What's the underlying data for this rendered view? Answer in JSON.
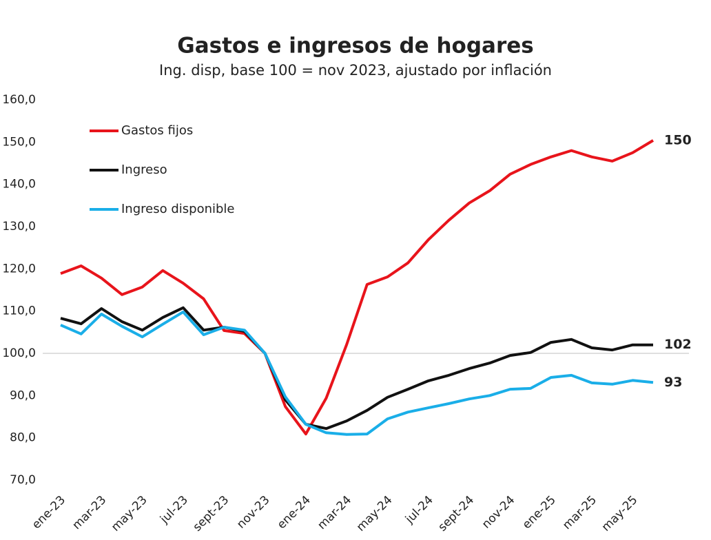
{
  "chart_data": {
    "type": "line",
    "title": "Gastos e ingresos de hogares",
    "subtitle": "Ing. disp, base 100 = nov 2023, ajustado por inflación",
    "categories": [
      "ene-23",
      null,
      "mar-23",
      null,
      "may-23",
      null,
      "jul-23",
      null,
      "sept-23",
      null,
      "nov-23",
      null,
      "ene-24",
      null,
      "mar-24",
      null,
      "may-24",
      null,
      "jul-24",
      null,
      "sept-24",
      null,
      "nov-24",
      null,
      "ene-25",
      null,
      "mar-25",
      null,
      "may-25",
      null
    ],
    "series": [
      {
        "name": "Gastos fijos",
        "color": "#e8141b",
        "end_label": "150",
        "values": [
          118.9,
          120.7,
          117.8,
          113.9,
          115.7,
          119.6,
          116.6,
          112.9,
          105.4,
          104.7,
          100,
          87.4,
          80.9,
          89.4,
          102.1,
          116.3,
          118.1,
          121.4,
          126.9,
          131.5,
          135.6,
          138.5,
          142.4,
          144.7,
          146.5,
          148,
          146.5,
          145.5,
          147.5,
          150.4
        ]
      },
      {
        "name": "Ingreso",
        "color": "#111111",
        "end_label": "102",
        "values": [
          108.3,
          107,
          110.6,
          107.5,
          105.5,
          108.5,
          110.8,
          105.5,
          106.2,
          105.2,
          100,
          89,
          83.2,
          82.2,
          84,
          86.5,
          89.6,
          91.5,
          93.5,
          94.8,
          96.4,
          97.7,
          99.5,
          100.2,
          102.6,
          103.3,
          101.3,
          100.8,
          102,
          102
        ]
      },
      {
        "name": "Ingreso disponible",
        "color": "#1aaee8",
        "end_label": "93",
        "values": [
          106.7,
          104.6,
          109.3,
          106.4,
          103.9,
          106.9,
          109.8,
          104.4,
          106.2,
          105.5,
          100,
          89.7,
          83.2,
          81.2,
          80.8,
          80.9,
          84.5,
          86.1,
          87.1,
          88.1,
          89.2,
          90,
          91.5,
          91.7,
          94.3,
          94.8,
          93,
          92.7,
          93.6,
          93.1
        ]
      }
    ],
    "ylim": [
      70,
      160
    ],
    "yticks": [
      {
        "value": 70,
        "label": "70,0"
      },
      {
        "value": 80,
        "label": "80,0"
      },
      {
        "value": 90,
        "label": "90,0"
      },
      {
        "value": 100,
        "label": "100,0"
      },
      {
        "value": 110,
        "label": "110,0"
      },
      {
        "value": 120,
        "label": "120,0"
      },
      {
        "value": 130,
        "label": "130,0"
      },
      {
        "value": 140,
        "label": "140,0"
      },
      {
        "value": 150,
        "label": "150,0"
      },
      {
        "value": 160,
        "label": "160,0"
      }
    ],
    "reference_line": 100,
    "legend": "upper left"
  }
}
